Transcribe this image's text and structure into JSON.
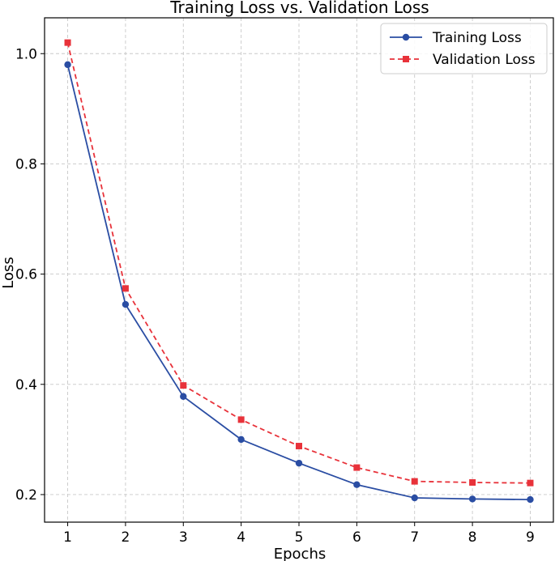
{
  "chart_data": {
    "type": "line",
    "title": "Training Loss vs. Validation Loss",
    "xlabel": "Epochs",
    "ylabel": "Loss",
    "x": [
      1,
      2,
      3,
      4,
      5,
      6,
      7,
      8,
      9
    ],
    "x_ticks": [
      "1",
      "2",
      "3",
      "4",
      "5",
      "6",
      "7",
      "8",
      "9"
    ],
    "y_ticks": [
      "0.2",
      "0.4",
      "0.6",
      "0.8",
      "1.0"
    ],
    "xlim": [
      0.6,
      9.4
    ],
    "ylim": [
      0.15,
      1.065
    ],
    "grid": true,
    "legend_position": "top-right",
    "series": [
      {
        "name": "Training Loss",
        "values": [
          0.98,
          0.545,
          0.378,
          0.3,
          0.257,
          0.218,
          0.194,
          0.192,
          0.191
        ],
        "color": "#2a4da3",
        "marker": "circle",
        "line_style": "solid"
      },
      {
        "name": "Validation Loss",
        "values": [
          1.02,
          0.574,
          0.398,
          0.336,
          0.288,
          0.249,
          0.224,
          0.222,
          0.221
        ],
        "color": "#e8323a",
        "marker": "square",
        "line_style": "dashed"
      }
    ]
  }
}
